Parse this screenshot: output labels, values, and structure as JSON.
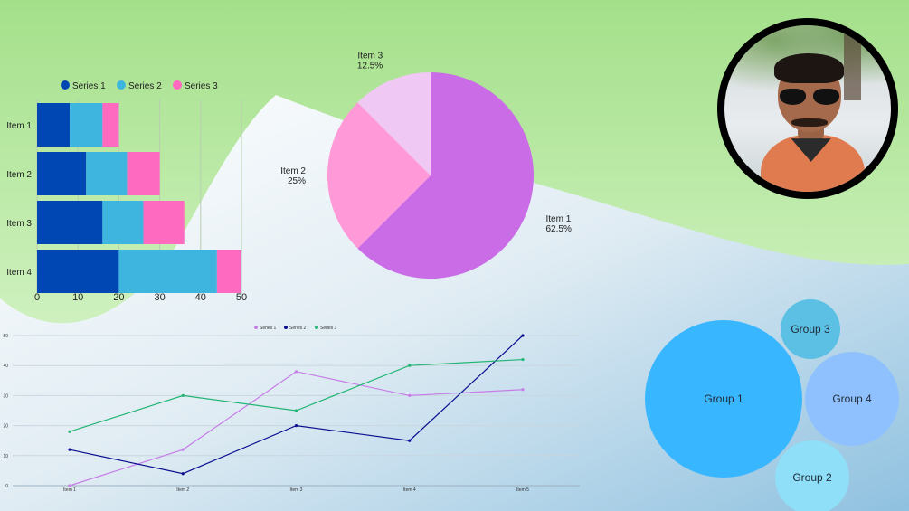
{
  "colors": {
    "series1_bar": "#0047b3",
    "series2_bar": "#3db5de",
    "series3_bar": "#ff6ac1",
    "pie_item1": "#c96ce6",
    "pie_item2": "#ff99d8",
    "pie_item3": "#efc9f4",
    "line_series1": "#c77de8",
    "line_series2": "#0a0f8f",
    "line_series3": "#22b573",
    "bubble_group1": "#38b6ff",
    "bubble_group2": "#8edff7",
    "bubble_group3": "#5bc0e3",
    "bubble_group4": "#8fc1ff"
  },
  "photo": {
    "icon": "person-portrait-photo"
  },
  "chart_data": [
    {
      "type": "bar",
      "orientation": "horizontal",
      "stacked": true,
      "categories": [
        "Item 1",
        "Item 2",
        "Item 3",
        "Item 4"
      ],
      "series": [
        {
          "name": "Series 1",
          "values": [
            8,
            12,
            16,
            20
          ]
        },
        {
          "name": "Series 2",
          "values": [
            8,
            10,
            10,
            24
          ]
        },
        {
          "name": "Series 3",
          "values": [
            4,
            8,
            10,
            6
          ]
        }
      ],
      "xticks": [
        "0",
        "10",
        "20",
        "30",
        "40",
        "50"
      ],
      "xlim": [
        0,
        50
      ],
      "legend": "top",
      "grid": true
    },
    {
      "type": "pie",
      "slices": [
        {
          "label": "Item 1",
          "value": 62.5,
          "value_label": "62.5%"
        },
        {
          "label": "Item 2",
          "value": 25,
          "value_label": "25%"
        },
        {
          "label": "Item 3",
          "value": 12.5,
          "value_label": "12.5%"
        }
      ]
    },
    {
      "type": "line",
      "categories": [
        "Item 1",
        "Item 2",
        "Item 3",
        "Item 4",
        "Item 5"
      ],
      "series": [
        {
          "name": "Series 1",
          "values": [
            0,
            12,
            38,
            30,
            32
          ]
        },
        {
          "name": "Series 2",
          "values": [
            12,
            4,
            20,
            15,
            50
          ]
        },
        {
          "name": "Series 3",
          "values": [
            18,
            30,
            25,
            40,
            42
          ]
        }
      ],
      "yticks": [
        "0",
        "10",
        "20",
        "30",
        "40",
        "50"
      ],
      "ylim": [
        0,
        50
      ],
      "legend": "top",
      "grid": true
    },
    {
      "type": "bubble",
      "bubbles": [
        {
          "label": "Group 1",
          "value": 100
        },
        {
          "label": "Group 2",
          "value": 25
        },
        {
          "label": "Group 3",
          "value": 15
        },
        {
          "label": "Group 4",
          "value": 38
        }
      ]
    }
  ]
}
